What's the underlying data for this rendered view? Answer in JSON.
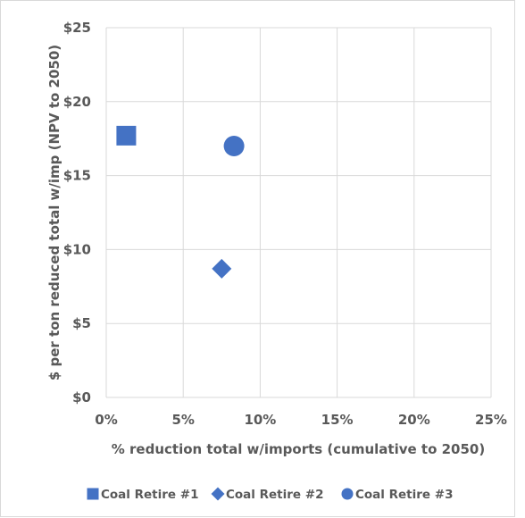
{
  "chart_data": {
    "type": "scatter",
    "title": "",
    "xlabel": "% reduction total w/imports (cumulative to 2050)",
    "ylabel": "$ per ton reduced total w/imp (NPV to 2050)",
    "xlim": [
      0,
      25
    ],
    "ylim": [
      0,
      25
    ],
    "x_ticks": [
      "0%",
      "5%",
      "10%",
      "15%",
      "20%",
      "25%"
    ],
    "y_ticks": [
      "$0",
      "$5",
      "$10",
      "$15",
      "$20",
      "$25"
    ],
    "grid": true,
    "legend_position": "bottom",
    "color": "#4472c4",
    "series": [
      {
        "name": "Coal Retire #1",
        "marker": "square",
        "x": 1.3,
        "y": 17.7
      },
      {
        "name": "Coal Retire #2",
        "marker": "diamond",
        "x": 7.5,
        "y": 8.7
      },
      {
        "name": "Coal Retire #3",
        "marker": "circle",
        "x": 8.3,
        "y": 17.0
      }
    ]
  }
}
